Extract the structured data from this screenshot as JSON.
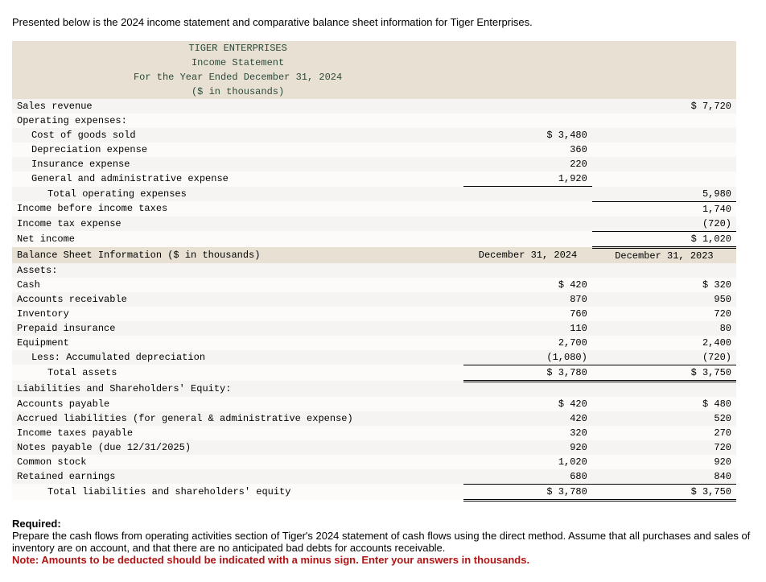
{
  "intro_text": "Presented below is the 2024 income statement and comparative balance sheet information for Tiger Enterprises.",
  "stmt_header": {
    "line1": "TIGER ENTERPRISES",
    "line2": "Income Statement",
    "line3": "For the Year Ended December 31, 2024",
    "line4": "($ in thousands)"
  },
  "inc": {
    "sales_revenue_label": "Sales revenue",
    "sales_revenue": "$ 7,720",
    "op_exp_label": "Operating expenses:",
    "cogs_label": "Cost of goods sold",
    "cogs": "$ 3,480",
    "dep_label": "Depreciation expense",
    "dep": "360",
    "ins_label": "Insurance expense",
    "ins": "220",
    "ga_label": "General and administrative expense",
    "ga": "1,920",
    "total_op_label": "Total operating expenses",
    "total_op": "5,980",
    "inc_before_tax_label": "Income before income taxes",
    "inc_before_tax": "1,740",
    "tax_label": "Income tax expense",
    "tax": "(720)",
    "net_income_label": "Net income",
    "net_income": "$ 1,020"
  },
  "bs_header": {
    "title": "Balance Sheet Information ($ in thousands)",
    "col1": "December 31, 2024",
    "col2": "December 31, 2023"
  },
  "bs": {
    "assets_label": "Assets:",
    "cash_label": "Cash",
    "cash_2024": "$ 420",
    "cash_2023": "$ 320",
    "ar_label": "Accounts receivable",
    "ar_2024": "870",
    "ar_2023": "950",
    "inv_label": "Inventory",
    "inv_2024": "760",
    "inv_2023": "720",
    "prepaid_label": "Prepaid insurance",
    "prepaid_2024": "110",
    "prepaid_2023": "80",
    "equip_label": "Equipment",
    "equip_2024": "2,700",
    "equip_2023": "2,400",
    "accdep_label": "Less: Accumulated depreciation",
    "accdep_2024": "(1,080)",
    "accdep_2023": "(720)",
    "ta_label": "Total assets",
    "ta_2024": "$ 3,780",
    "ta_2023": "$ 3,750",
    "liab_label": "Liabilities and Shareholders' Equity:",
    "ap_label": "Accounts payable",
    "ap_2024": "$ 420",
    "ap_2023": "$ 480",
    "accr_label": "Accrued liabilities (for general & administrative expense)",
    "accr_2024": "420",
    "accr_2023": "520",
    "itp_label": "Income taxes payable",
    "itp_2024": "320",
    "itp_2023": "270",
    "np_label": "Notes payable (due 12/31/2025)",
    "np_2024": "920",
    "np_2023": "720",
    "cs_label": "Common stock",
    "cs_2024": "1,020",
    "cs_2023": "920",
    "re_label": "Retained earnings",
    "re_2024": "680",
    "re_2023": "840",
    "tle_label": "Total liabilities and shareholders' equity",
    "tle_2024": "$ 3,780",
    "tle_2023": "$ 3,750"
  },
  "required": {
    "label": "Required:",
    "text": "Prepare the cash flows from operating activities section of Tiger's 2024 statement of cash flows using the direct method. Assume that all purchases and sales of inventory are on account, and that there are no anticipated bad debts for accounts receivable.",
    "note": "Note: Amounts to be deducted should be indicated with a minus sign. Enter your answers in thousands."
  }
}
